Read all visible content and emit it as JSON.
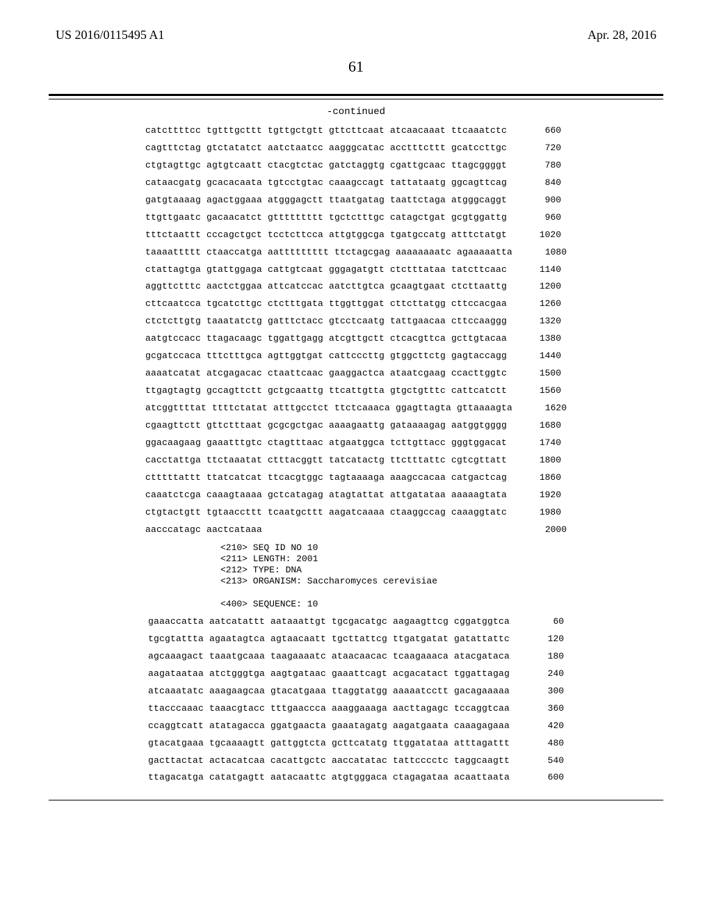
{
  "header": {
    "pub_number": "US 2016/0115495 A1",
    "pub_date": "Apr. 28, 2016",
    "page_number": "61",
    "continued_label": "-continued"
  },
  "sequence_block_1": {
    "rows": [
      {
        "groups": "catcttttcc tgtttgcttt tgttgctgtt gttcttcaat atcaacaaat ttcaaatctc",
        "pos": "660"
      },
      {
        "groups": "cagtttctag gtctatatct aatctaatcc aagggcatac acctttcttt gcatccttgc",
        "pos": "720"
      },
      {
        "groups": "ctgtagttgc agtgtcaatt ctacgtctac gatctaggtg cgattgcaac ttagcggggt",
        "pos": "780"
      },
      {
        "groups": "cataacgatg gcacacaata tgtcctgtac caaagccagt tattataatg ggcagttcag",
        "pos": "840"
      },
      {
        "groups": "gatgtaaaag agactggaaa atgggagctt ttaatgatag taattctaga atgggcaggt",
        "pos": "900"
      },
      {
        "groups": "ttgttgaatc gacaacatct gttttttttt tgctctttgc catagctgat gcgtggattg",
        "pos": "960"
      },
      {
        "groups": "tttctaattt cccagctgct tcctcttcca attgtggcga tgatgccatg atttctatgt",
        "pos": "1020"
      },
      {
        "groups": "taaaattttt ctaaccatga aattttttttt ttctagcgag aaaaaaaatc agaaaaatta",
        "pos": "1080"
      },
      {
        "groups": "ctattagtga gtattggaga cattgtcaat gggagatgtt ctctttataa tatcttcaac",
        "pos": "1140"
      },
      {
        "groups": "aggttctttc aactctggaa attcatccac aatcttgtca gcaagtgaat ctcttaattg",
        "pos": "1200"
      },
      {
        "groups": "cttcaatcca tgcatcttgc ctctttgata ttggttggat cttcttatgg cttccacgaa",
        "pos": "1260"
      },
      {
        "groups": "ctctcttgtg taaatatctg gatttctacc gtcctcaatg tattgaacaa cttccaaggg",
        "pos": "1320"
      },
      {
        "groups": "aatgtccacc ttagacaagc tggattgagg atcgttgctt ctcacgttca gcttgtacaa",
        "pos": "1380"
      },
      {
        "groups": "gcgatccaca tttctttgca agttggtgat cattcccttg gtggcttctg gagtaccagg",
        "pos": "1440"
      },
      {
        "groups": "aaaatcatat atcgagacac ctaattcaac gaaggactca ataatcgaag ccacttggtc",
        "pos": "1500"
      },
      {
        "groups": "ttgagtagtg gccagttctt gctgcaattg ttcattgtta gtgctgtttc cattcatctt",
        "pos": "1560"
      },
      {
        "groups": "atcggttttat ttttctatat atttgcctct ttctcaaaca ggagttagta gttaaaagta",
        "pos": "1620"
      },
      {
        "groups": "cgaagttctt gttctttaat gcgcgctgac aaaagaattg gataaaagag aatggtgggg",
        "pos": "1680"
      },
      {
        "groups": "ggacaagaag gaaatttgtc ctagtttaac atgaatggca tcttgttacc gggtggacat",
        "pos": "1740"
      },
      {
        "groups": "cacctattga ttctaaatat ctttacggtt tatcatactg ttctttattc cgtcgttatt",
        "pos": "1800"
      },
      {
        "groups": "ctttttattt ttatcatcat ttcacgtggc tagtaaaaga aaagccacaa catgactcag",
        "pos": "1860"
      },
      {
        "groups": "caaatctcga caaagtaaaa gctcatagag atagtattat attgatataa aaaaagtata",
        "pos": "1920"
      },
      {
        "groups": "ctgtactgtt tgtaaccttt tcaatgcttt aagatcaaaa ctaaggccag caaaggtatc",
        "pos": "1980"
      },
      {
        "groups": "aacccatagc aactcataaa                                             ",
        "pos": "2000"
      }
    ]
  },
  "meta": {
    "lines": [
      "<210> SEQ ID NO 10",
      "<211> LENGTH: 2001",
      "<212> TYPE: DNA",
      "<213> ORGANISM: Saccharomyces cerevisiae",
      "",
      "<400> SEQUENCE: 10"
    ]
  },
  "sequence_block_2": {
    "rows": [
      {
        "groups": "gaaaccatta aatcatattt aataaattgt tgcgacatgc aagaagttcg cggatggtca",
        "pos": "60"
      },
      {
        "groups": "tgcgtattta agaatagtca agtaacaatt tgcttattcg ttgatgatat gatattattc",
        "pos": "120"
      },
      {
        "groups": "agcaaagact taaatgcaaa taagaaaatc ataacaacac tcaagaaaca atacgataca",
        "pos": "180"
      },
      {
        "groups": "aagataataa atctgggtga aagtgataac gaaattcagt acgacatact tggattagag",
        "pos": "240"
      },
      {
        "groups": "atcaaatatc aaagaagcaa gtacatgaaa ttaggtatgg aaaaatcctt gacagaaaaa",
        "pos": "300"
      },
      {
        "groups": "ttacccaaac taaacgtacc tttgaaccca aaaggaaaga aacttagagc tccaggtcaa",
        "pos": "360"
      },
      {
        "groups": "ccaggtcatt atatagacca ggatgaacta gaaatagatg aagatgaata caaagagaaa",
        "pos": "420"
      },
      {
        "groups": "gtacatgaaa tgcaaaagtt gattggtcta gcttcatatg ttggatataa atttagattt",
        "pos": "480"
      },
      {
        "groups": "gacttactat actacatcaa cacattgctc aaccatatac tattcccctc taggcaagtt",
        "pos": "540"
      },
      {
        "groups": "ttagacatga catatgagtt aatacaattc atgtgggaca ctagagataa acaattaata",
        "pos": "600"
      }
    ]
  }
}
